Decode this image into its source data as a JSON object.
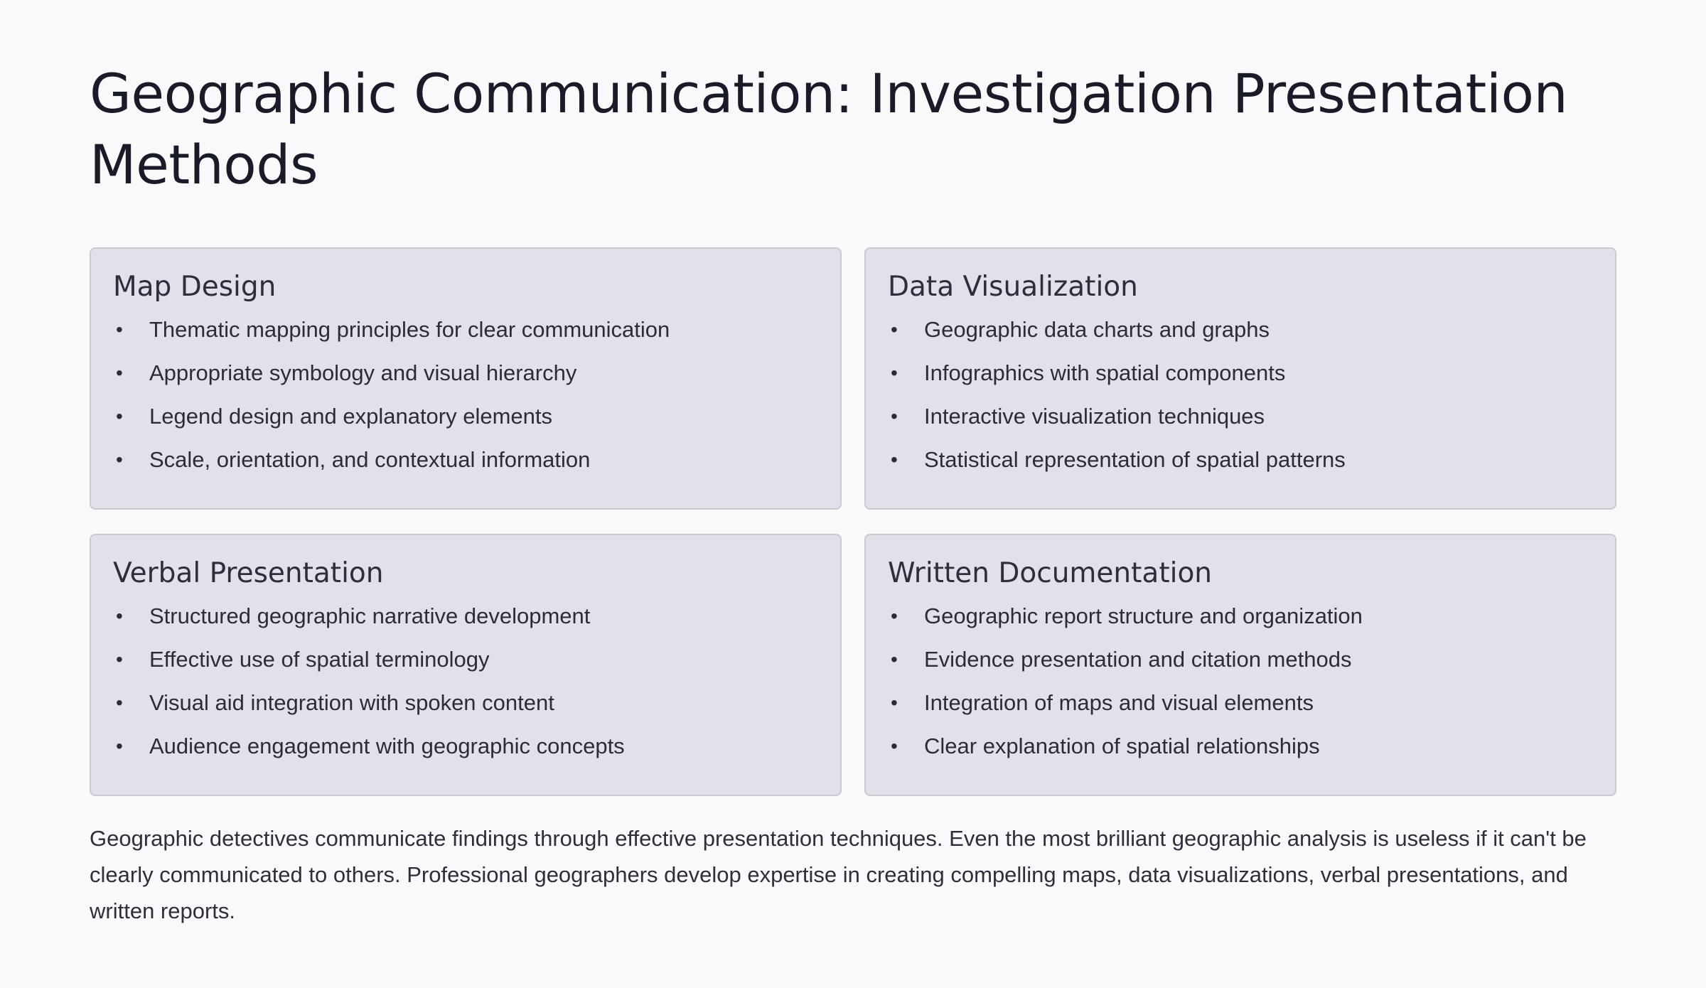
{
  "title": "Geographic Communication: Investigation Presentation Methods",
  "cards": [
    {
      "title": "Map Design",
      "items": [
        "Thematic mapping principles for clear communication",
        "Appropriate symbology and visual hierarchy",
        "Legend design and explanatory elements",
        "Scale, orientation, and contextual information"
      ]
    },
    {
      "title": "Data Visualization",
      "items": [
        "Geographic data charts and graphs",
        "Infographics with spatial components",
        "Interactive visualization techniques",
        "Statistical representation of spatial patterns"
      ]
    },
    {
      "title": "Verbal Presentation",
      "items": [
        "Structured geographic narrative development",
        "Effective use of spatial terminology",
        "Visual aid integration with spoken content",
        "Audience engagement with geographic concepts"
      ]
    },
    {
      "title": "Written Documentation",
      "items": [
        "Geographic report structure and organization",
        "Evidence presentation and citation methods",
        "Integration of maps and visual elements",
        "Clear explanation of spatial relationships"
      ]
    }
  ],
  "summary": "Geographic detectives communicate findings through effective presentation techniques. Even the most brilliant geographic analysis is useless if it can't be clearly communicated to others. Professional geographers develop expertise in creating compelling maps, data visualizations, verbal presentations, and written reports.",
  "bullet_glyph": "•"
}
